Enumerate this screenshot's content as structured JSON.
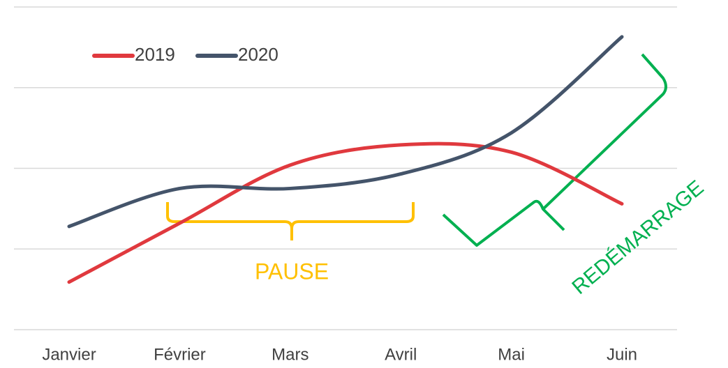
{
  "chart_data": {
    "type": "line",
    "categories": [
      "Janvier",
      "Février",
      "Mars",
      "Avril",
      "Mai",
      "Juin"
    ],
    "series": [
      {
        "name": "2019",
        "color": "#e0393e",
        "values": [
          0.59,
          1.32,
          2.04,
          2.29,
          2.2,
          1.56
        ]
      },
      {
        "name": "2020",
        "color": "#44546a",
        "values": [
          1.28,
          1.75,
          1.75,
          1.93,
          2.44,
          3.63
        ]
      }
    ],
    "ylim": [
      0,
      4
    ],
    "yticks": [
      0,
      1,
      2,
      3,
      4
    ],
    "grid": true,
    "legend": "top-left",
    "annotations": [
      "PAUSE",
      "REDÉMARRAGE"
    ]
  }
}
